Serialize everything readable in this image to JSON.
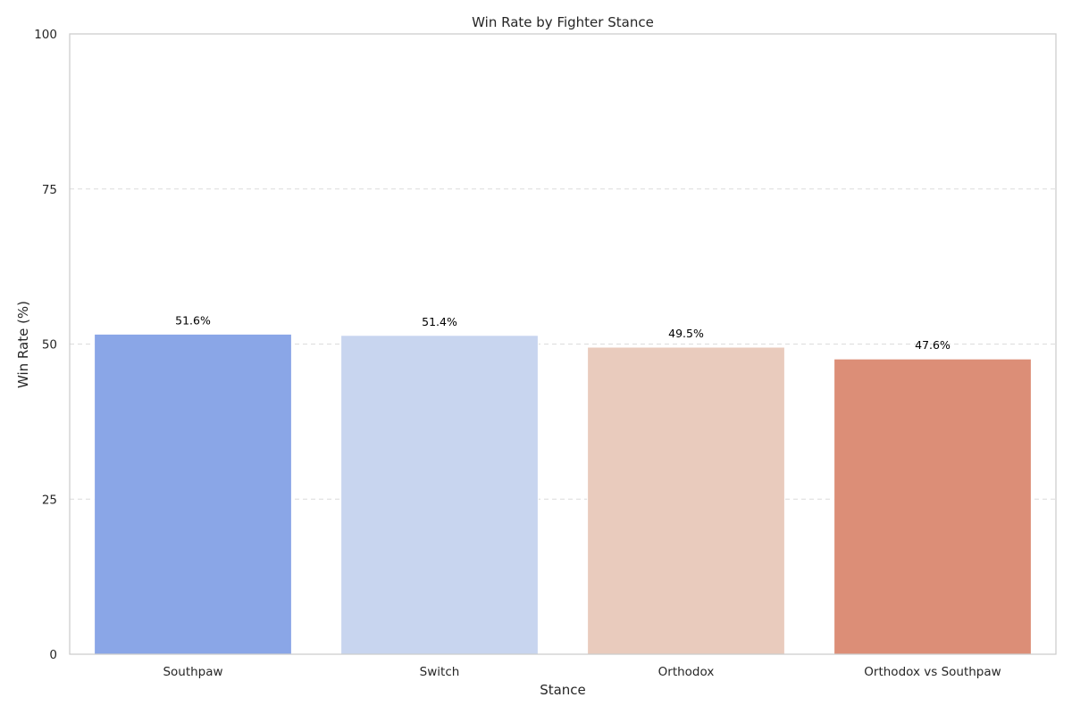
{
  "chart_data": {
    "type": "bar",
    "title": "Win Rate by Fighter Stance",
    "xlabel": "Stance",
    "ylabel": "Win Rate (%)",
    "categories": [
      "Southpaw",
      "Switch",
      "Orthodox",
      "Orthodox vs Southpaw"
    ],
    "values": [
      51.6,
      51.4,
      49.5,
      47.6
    ],
    "data_labels": [
      "51.6%",
      "51.4%",
      "49.5%",
      "47.6%"
    ],
    "colors": [
      "#8aa6e7",
      "#c8d5ef",
      "#e9cbbd",
      "#dc8e77"
    ],
    "ylim": [
      0,
      100
    ],
    "yticks": [
      0,
      25,
      50,
      75,
      100
    ],
    "grid": "y-dashed",
    "legend": "none"
  }
}
